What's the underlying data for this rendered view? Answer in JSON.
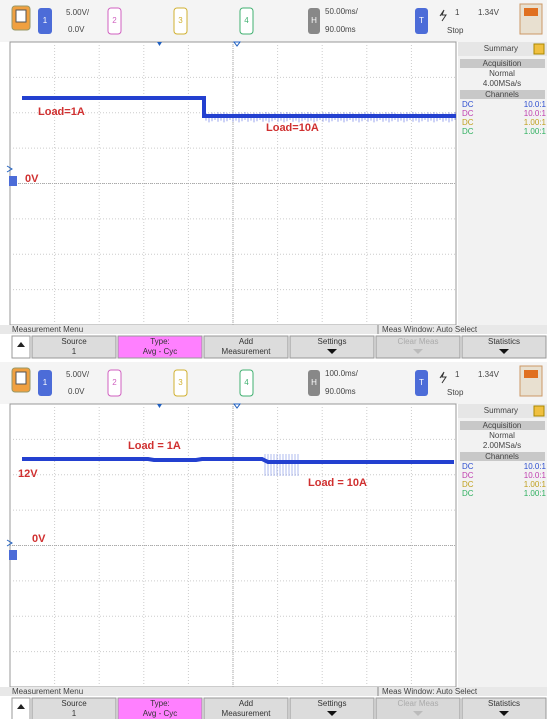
{
  "panels": [
    {
      "toolbar": {
        "ch1": {
          "number": "1",
          "scale": "5.00V/",
          "offset": "0.0V"
        },
        "ch2": "2",
        "ch3": "3",
        "ch4": "4",
        "horizontal": {
          "label": "H",
          "scale": "50.00ms/",
          "delay": "90.00ms"
        },
        "trigger": {
          "label": "T",
          "source": "1",
          "level": "1.34V",
          "status": "Stop"
        }
      },
      "sidebar": {
        "tab": "Summary",
        "acquisition_title": "Acquisition",
        "mode": "Normal",
        "rate": "4.00MSa/s",
        "channels_title": "Channels",
        "channels": [
          {
            "coupling": "DC",
            "probe": "10.0:1"
          },
          {
            "coupling": "DC",
            "probe": "10.0:1"
          },
          {
            "coupling": "DC",
            "probe": "1.00:1"
          },
          {
            "coupling": "DC",
            "probe": "1.00:1"
          }
        ]
      },
      "annotations": {
        "load_low": "Load=1A",
        "load_high": "Load=10A",
        "ground": "0V"
      },
      "menu": {
        "title": "Measurement Menu",
        "window": "Meas Window: Auto Select",
        "softkeys": [
          {
            "label": "Source",
            "value": "1"
          },
          {
            "label": "Type:",
            "value": "Avg - Cyc"
          },
          {
            "label": "Add",
            "value": "Measurement"
          },
          {
            "label": "Settings"
          },
          {
            "label": "Clear Meas"
          },
          {
            "label": "Statistics"
          }
        ]
      }
    },
    {
      "toolbar": {
        "ch1": {
          "number": "1",
          "scale": "5.00V/",
          "offset": "0.0V"
        },
        "ch2": "2",
        "ch3": "3",
        "ch4": "4",
        "horizontal": {
          "label": "H",
          "scale": "100.0ms/",
          "delay": "90.00ms"
        },
        "trigger": {
          "label": "T",
          "source": "1",
          "level": "1.34V",
          "status": "Stop"
        }
      },
      "sidebar": {
        "tab": "Summary",
        "acquisition_title": "Acquisition",
        "mode": "Normal",
        "rate": "2.00MSa/s",
        "channels_title": "Channels",
        "channels": [
          {
            "coupling": "DC",
            "probe": "10.0:1"
          },
          {
            "coupling": "DC",
            "probe": "10.0:1"
          },
          {
            "coupling": "DC",
            "probe": "1.00:1"
          },
          {
            "coupling": "DC",
            "probe": "1.00:1"
          }
        ]
      },
      "annotations": {
        "load_low": "Load = 1A",
        "load_high": "Load = 10A",
        "level": "12V",
        "ground": "0V"
      },
      "menu": {
        "title": "Measurement Menu",
        "window": "Meas Window: Auto Select",
        "softkeys": [
          {
            "label": "Source",
            "value": "1"
          },
          {
            "label": "Type:",
            "value": "Avg - Cyc"
          },
          {
            "label": "Add",
            "value": "Measurement"
          },
          {
            "label": "Settings"
          },
          {
            "label": "Clear Meas"
          },
          {
            "label": "Statistics"
          }
        ]
      }
    }
  ]
}
